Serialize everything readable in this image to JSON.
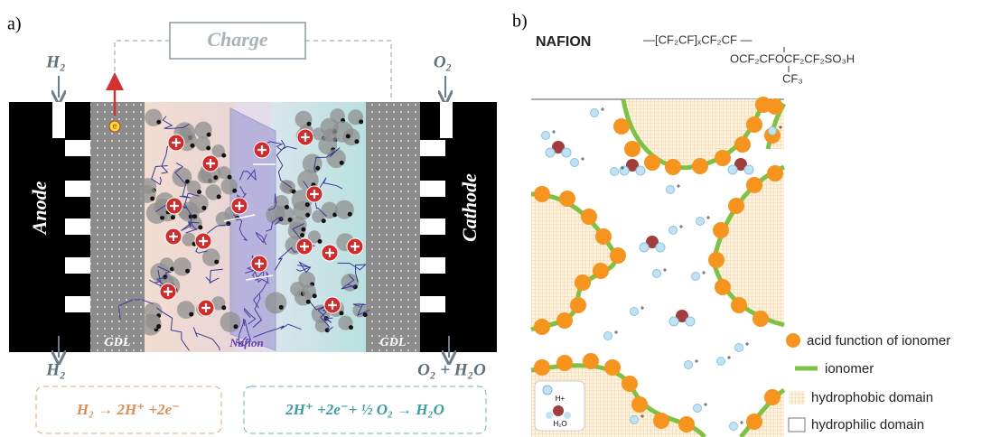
{
  "panel_a": {
    "label": "a)",
    "charge": "Charge",
    "anode_inlet": "H₂",
    "cathode_inlet": "O₂",
    "anode": "Anode",
    "cathode": "Cathode",
    "gdl_left": "GDL",
    "gdl_right": "GDL",
    "membrane": "Nafion",
    "electron": "e",
    "anode_outlet": "H₂",
    "cathode_outlet": "O₂ + H₂O",
    "anode_reaction": "H₂ → 2H⁺ +2e⁻",
    "cathode_reaction": "2H⁺ +2e⁻+ ½ O₂ → H₂O"
  },
  "panel_b": {
    "label": "b)",
    "polymer_name": "NAFION",
    "formula": {
      "backbone": "—[CF₂CF]ₓCF₂CF —",
      "side_chain": "OCF₂CFOCF₂CF₂SO₃H",
      "branch": "CF₃"
    },
    "legend": [
      "acid function of ionomer",
      "ionomer",
      "hydrophobic domain",
      "hydrophilic domain"
    ],
    "inset": {
      "proton": "H+",
      "water": "H₂O"
    }
  }
}
